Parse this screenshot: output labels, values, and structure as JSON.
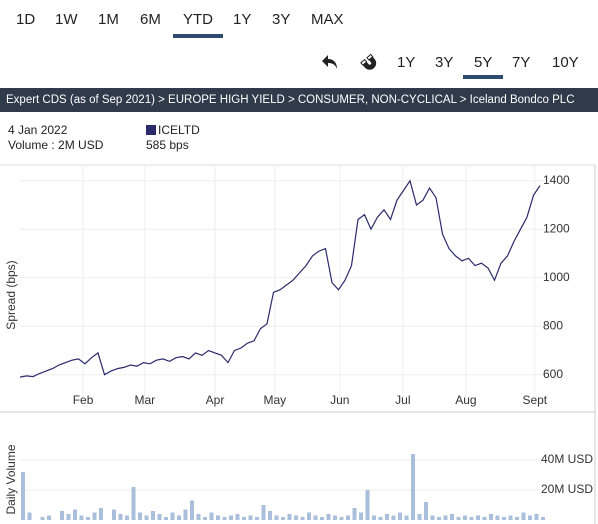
{
  "range_buttons": [
    "1D",
    "1W",
    "1M",
    "6M",
    "YTD",
    "1Y",
    "3Y",
    "MAX"
  ],
  "selected_range_index": 4,
  "period_buttons": [
    "1Y",
    "3Y",
    "5Y",
    "7Y",
    "10Y"
  ],
  "selected_period_index": 2,
  "breadcrumb": "Expert CDS (as of Sep 2021) > EUROPE HIGH YIELD > CONSUMER, NON-CYCLICAL > Iceland Bondco PLC",
  "info": {
    "date": "4 Jan 2022",
    "volume": "Volume : 2M USD",
    "spread": "585 bps"
  },
  "chart_data": [
    {
      "type": "line",
      "ylabel": "Spread (bps)",
      "ylim": [
        475,
        1465
      ],
      "yticks": [
        600,
        800,
        1000,
        1200,
        1400
      ],
      "xticks": [
        {
          "value": 9.7,
          "label": "Feb"
        },
        {
          "value": 19.2,
          "label": "Mar"
        },
        {
          "value": 30,
          "label": "Apr"
        },
        {
          "value": 39.2,
          "label": "May"
        },
        {
          "value": 49.2,
          "label": "Jun"
        },
        {
          "value": 58.9,
          "label": "Jul"
        },
        {
          "value": 68.6,
          "label": "Aug"
        },
        {
          "value": 79.2,
          "label": "Sept"
        }
      ],
      "grid": true,
      "series": [
        {
          "name": "ICELTD",
          "color": "#2b2a6b",
          "values": [
            590,
            595,
            592,
            605,
            615,
            625,
            640,
            650,
            660,
            665,
            645,
            670,
            690,
            600,
            615,
            625,
            630,
            640,
            635,
            650,
            645,
            660,
            665,
            655,
            670,
            675,
            665,
            690,
            680,
            700,
            690,
            680,
            650,
            700,
            710,
            730,
            740,
            790,
            810,
            940,
            950,
            970,
            990,
            1020,
            1050,
            1090,
            1110,
            1120,
            980,
            950,
            990,
            1050,
            1240,
            1260,
            1200,
            1250,
            1280,
            1240,
            1320,
            1360,
            1400,
            1300,
            1320,
            1370,
            1330,
            1180,
            1120,
            1090,
            1070,
            1080,
            1050,
            1060,
            1040,
            990,
            1060,
            1090,
            1150,
            1200,
            1250,
            1340,
            1380
          ]
        }
      ]
    },
    {
      "type": "bar",
      "ylabel": "Daily Volume",
      "ylim": [
        0,
        70000000
      ],
      "yticks": [
        {
          "value": 20000000,
          "label": "20M USD"
        },
        {
          "value": 40000000,
          "label": "40M USD"
        }
      ],
      "color": "#a9bfdc",
      "values": [
        32000000,
        5000000,
        0,
        2000000,
        3000000,
        0,
        6000000,
        4000000,
        7000000,
        3000000,
        2000000,
        5000000,
        8000000,
        0,
        7000000,
        4000000,
        3000000,
        22000000,
        5000000,
        3000000,
        6000000,
        4000000,
        2000000,
        5000000,
        3000000,
        7000000,
        13000000,
        4000000,
        2000000,
        5000000,
        3000000,
        2000000,
        3000000,
        4000000,
        2000000,
        3000000,
        2000000,
        10000000,
        6000000,
        3000000,
        2000000,
        4000000,
        3000000,
        2000000,
        5000000,
        3000000,
        2000000,
        4000000,
        3000000,
        2000000,
        3000000,
        8000000,
        5000000,
        20000000,
        3000000,
        2000000,
        4000000,
        3000000,
        5000000,
        3000000,
        44000000,
        4000000,
        12000000,
        3000000,
        2000000,
        3000000,
        4000000,
        2000000,
        3000000,
        2000000,
        3000000,
        2000000,
        4000000,
        3000000,
        2000000,
        3000000,
        2000000,
        5000000,
        3000000,
        4000000,
        2000000
      ]
    }
  ]
}
